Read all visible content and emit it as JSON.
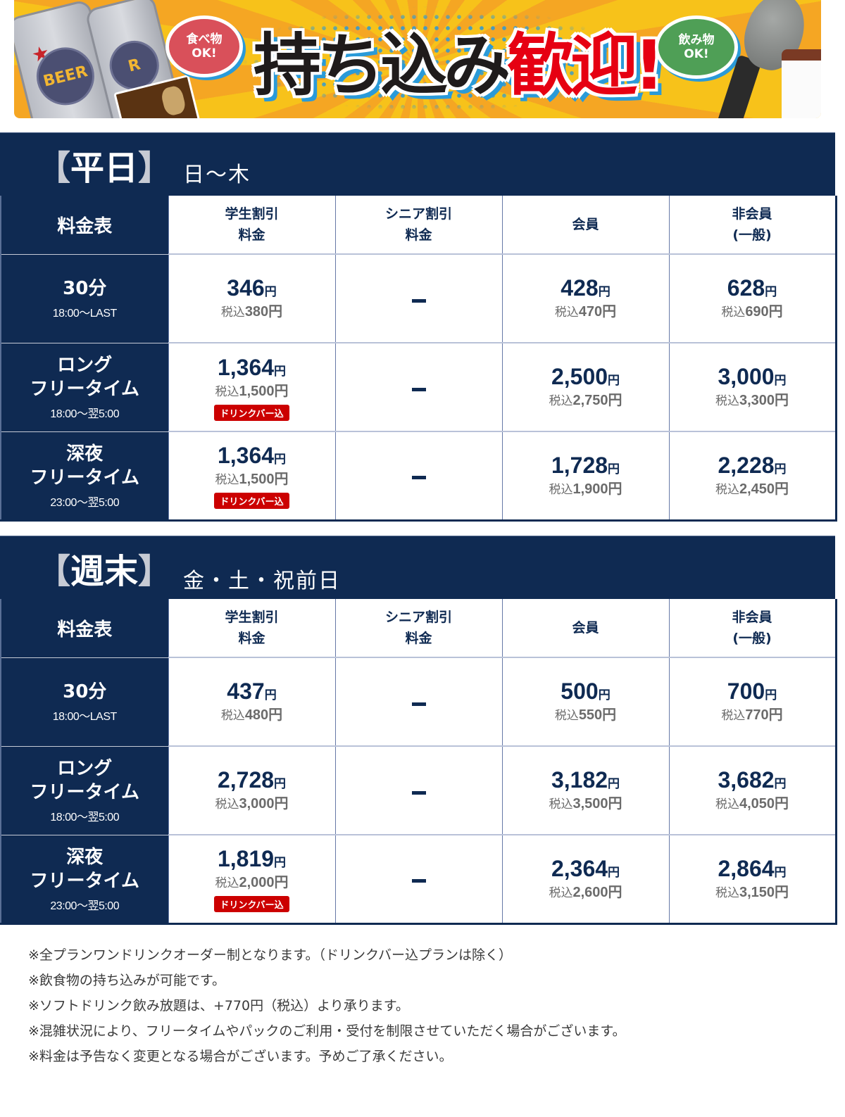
{
  "banner": {
    "food_bubble": {
      "line1": "食べ物",
      "line2": "OK!"
    },
    "drink_bubble": {
      "line1": "飲み物",
      "line2": "OK!"
    },
    "headline_black": "持ち込み",
    "headline_red": "歓迎!",
    "can_label": "BEER",
    "colors": {
      "background": "#f7c21a",
      "headline": "#1f1b1b",
      "accent_red": "#e60012",
      "outline_blue": "#2a9ad8"
    }
  },
  "colors": {
    "navy": "#0f2a52",
    "badge_red": "#cc0000",
    "tax_gray": "#6b6b6b"
  },
  "tables": [
    {
      "title": "平日",
      "bracket_open": "【",
      "bracket_close": "】",
      "days": "日〜木",
      "corner_label": "料金表",
      "columns": [
        {
          "line1": "学生割引",
          "line2": "料金"
        },
        {
          "line1": "シニア割引",
          "line2": "料金"
        },
        {
          "line1": "会員",
          "line2": ""
        },
        {
          "line1": "非会員",
          "line2": "(一般)"
        }
      ],
      "rows": [
        {
          "name_line1": "30分",
          "name_line2": "",
          "time": "18:00〜LAST",
          "cells": [
            {
              "price": "346",
              "yen": "円",
              "tax_label": "税込",
              "tax_price": "380円",
              "badge": ""
            },
            {
              "dash": true
            },
            {
              "price": "428",
              "yen": "円",
              "tax_label": "税込",
              "tax_price": "470円",
              "badge": ""
            },
            {
              "price": "628",
              "yen": "円",
              "tax_label": "税込",
              "tax_price": "690円",
              "badge": ""
            }
          ]
        },
        {
          "name_line1": "ロング",
          "name_line2": "フリータイム",
          "time": "18:00〜翌5:00",
          "cells": [
            {
              "price": "1,364",
              "yen": "円",
              "tax_label": "税込",
              "tax_price": "1,500円",
              "badge": "ドリンクバー込"
            },
            {
              "dash": true
            },
            {
              "price": "2,500",
              "yen": "円",
              "tax_label": "税込",
              "tax_price": "2,750円",
              "badge": ""
            },
            {
              "price": "3,000",
              "yen": "円",
              "tax_label": "税込",
              "tax_price": "3,300円",
              "badge": ""
            }
          ]
        },
        {
          "name_line1": "深夜",
          "name_line2": "フリータイム",
          "time": "23:00〜翌5:00",
          "cells": [
            {
              "price": "1,364",
              "yen": "円",
              "tax_label": "税込",
              "tax_price": "1,500円",
              "badge": "ドリンクバー込"
            },
            {
              "dash": true
            },
            {
              "price": "1,728",
              "yen": "円",
              "tax_label": "税込",
              "tax_price": "1,900円",
              "badge": ""
            },
            {
              "price": "2,228",
              "yen": "円",
              "tax_label": "税込",
              "tax_price": "2,450円",
              "badge": ""
            }
          ]
        }
      ]
    },
    {
      "title": "週末",
      "bracket_open": "【",
      "bracket_close": "】",
      "days": "金・土・祝前日",
      "corner_label": "料金表",
      "columns": [
        {
          "line1": "学生割引",
          "line2": "料金"
        },
        {
          "line1": "シニア割引",
          "line2": "料金"
        },
        {
          "line1": "会員",
          "line2": ""
        },
        {
          "line1": "非会員",
          "line2": "(一般)"
        }
      ],
      "rows": [
        {
          "name_line1": "30分",
          "name_line2": "",
          "time": "18:00〜LAST",
          "cells": [
            {
              "price": "437",
              "yen": "円",
              "tax_label": "税込",
              "tax_price": "480円",
              "badge": ""
            },
            {
              "dash": true
            },
            {
              "price": "500",
              "yen": "円",
              "tax_label": "税込",
              "tax_price": "550円",
              "badge": ""
            },
            {
              "price": "700",
              "yen": "円",
              "tax_label": "税込",
              "tax_price": "770円",
              "badge": ""
            }
          ]
        },
        {
          "name_line1": "ロング",
          "name_line2": "フリータイム",
          "time": "18:00〜翌5:00",
          "cells": [
            {
              "price": "2,728",
              "yen": "円",
              "tax_label": "税込",
              "tax_price": "3,000円",
              "badge": ""
            },
            {
              "dash": true
            },
            {
              "price": "3,182",
              "yen": "円",
              "tax_label": "税込",
              "tax_price": "3,500円",
              "badge": ""
            },
            {
              "price": "3,682",
              "yen": "円",
              "tax_label": "税込",
              "tax_price": "4,050円",
              "badge": ""
            }
          ]
        },
        {
          "name_line1": "深夜",
          "name_line2": "フリータイム",
          "time": "23:00〜翌5:00",
          "cells": [
            {
              "price": "1,819",
              "yen": "円",
              "tax_label": "税込",
              "tax_price": "2,000円",
              "badge": "ドリンクバー込"
            },
            {
              "dash": true
            },
            {
              "price": "2,364",
              "yen": "円",
              "tax_label": "税込",
              "tax_price": "2,600円",
              "badge": ""
            },
            {
              "price": "2,864",
              "yen": "円",
              "tax_label": "税込",
              "tax_price": "3,150円",
              "badge": ""
            }
          ]
        }
      ]
    }
  ],
  "notes": [
    "※全プランワンドリンクオーダー制となります。（ドリンクバー込プランは除く）",
    "※飲食物の持ち込みが可能です。",
    "※ソフトドリンク飲み放題は、+770円（税込）より承ります。",
    "※混雑状況により、フリータイムやパックのご利用・受付を制限させていただく場合がございます。",
    "※料金は予告なく変更となる場合がございます。予めご了承ください。"
  ]
}
